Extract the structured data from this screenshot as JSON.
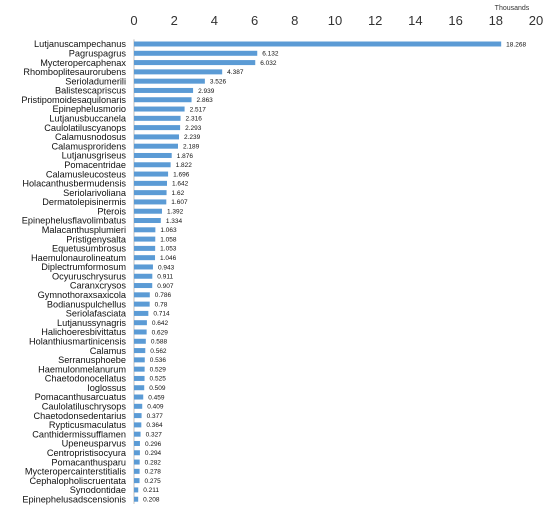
{
  "chart_data": {
    "type": "bar",
    "orientation": "horizontal",
    "units_label": "Thousands",
    "xlim": [
      0,
      20
    ],
    "xticks": [
      0,
      2,
      4,
      6,
      8,
      10,
      12,
      14,
      16,
      18,
      20
    ],
    "x_axis_position": "top",
    "grid": false,
    "bar_color": "#5b9bd5",
    "categories": [
      "Lutjanuscampechanus",
      "Pagruspagrus",
      "Mycteropercaphenax",
      "Rhomboplitesaurorubens",
      "Serioladumerili",
      "Balistescapriscus",
      "Pristipomoidesaquilonaris",
      "Epinephelusmorio",
      "Lutjanusbuccanela",
      "Caulolatiluscyanops",
      "Calamusnodosus",
      "Calamusproridens",
      "Lutjanusgriseus",
      "Pomacentridae",
      "Calamusleucosteus",
      "Holacanthusbermudensis",
      "Seriolarivoliana",
      "Dermatolepisinermis",
      "Pterois",
      "Epinephelusflavolimbatus",
      "Malacanthusplumieri",
      "Pristigenysalta",
      "Equetusumbrosus",
      "Haemulonaurolineatum",
      "Diplectrumformosum",
      "Ocyuruschrysurus",
      "Caranxcrysos",
      "Gymnothoraxsaxicola",
      "Bodianuspulchellus",
      "Seriolafasciata",
      "Lutjanussynagris",
      "Halichoeresbivittatus",
      "Holanthiusmartinicensis",
      "Calamus",
      "Serranusphoebe",
      "Haemulonmelanurum",
      "Chaetodonocellatus",
      "Ioglossus",
      "Pomacanthusarcuatus",
      "Caulolatiluschrysops",
      "Chaetodonsedentarius",
      "Rypticusmaculatus",
      "Canthidermissufflamen",
      "Upeneusparvus",
      "Centropristisocyura",
      "Pomacanthusparu",
      "Mycteropercainterstitialis",
      "Cephalopholiscruentata",
      "Synodontidae",
      "Epinephelusadscensionis"
    ],
    "values": [
      18.268,
      6.132,
      6.032,
      4.387,
      3.526,
      2.939,
      2.863,
      2.517,
      2.316,
      2.293,
      2.239,
      2.189,
      1.876,
      1.822,
      1.696,
      1.642,
      1.62,
      1.607,
      1.392,
      1.334,
      1.063,
      1.058,
      1.053,
      1.046,
      0.943,
      0.911,
      0.907,
      0.786,
      0.78,
      0.714,
      0.642,
      0.629,
      0.588,
      0.562,
      0.536,
      0.529,
      0.525,
      0.509,
      0.459,
      0.409,
      0.377,
      0.364,
      0.327,
      0.296,
      0.294,
      0.282,
      0.278,
      0.275,
      0.211,
      0.208
    ],
    "data_labels": [
      "18.268",
      "6.132",
      "6.032",
      "4.387",
      "3.526",
      "2.939",
      "2.863",
      "2.517",
      "2.316",
      "2.293",
      "2.239",
      "2.189",
      "1.876",
      "1.822",
      "1.696",
      "1.642",
      "1.62",
      "1.607",
      "1.392",
      "1.334",
      "1.063",
      "1.058",
      "1.053",
      "1.046",
      "0.943",
      "0.911",
      "0.907",
      "0.786",
      "0.78",
      "0.714",
      "0.642",
      "0.629",
      "0.588",
      "0.562",
      "0.536",
      "0.529",
      "0.525",
      "0.509",
      "0.459",
      "0.409",
      "0.377",
      "0.364",
      "0.327",
      "0.296",
      "0.294",
      "0.282",
      "0.278",
      "0.275",
      "0.211",
      "0.208"
    ]
  }
}
